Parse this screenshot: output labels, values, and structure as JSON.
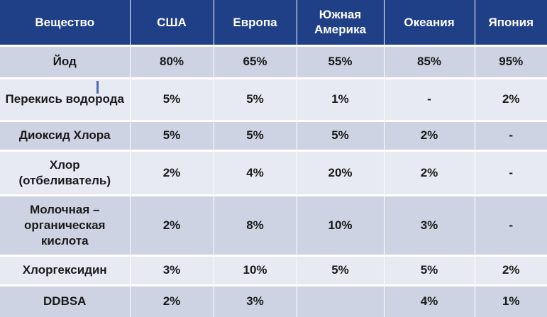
{
  "table": {
    "headers": [
      "Вещество",
      "США",
      "Европа",
      "Южная Америка",
      "Океания",
      "Япония"
    ],
    "rows": [
      [
        "Йод",
        "80%",
        "65%",
        "55%",
        "85%",
        "95%"
      ],
      [
        "Перекись водорода",
        "5%",
        "5%",
        "1%",
        "-",
        "2%"
      ],
      [
        "Диоксид Хлора",
        "5%",
        "5%",
        "5%",
        "2%",
        "-"
      ],
      [
        "Хлор (отбеливатель)",
        "2%",
        "4%",
        "20%",
        "2%",
        "-"
      ],
      [
        "Молочная – органическая кислота",
        "2%",
        "8%",
        "10%",
        "3%",
        "-"
      ],
      [
        "Хлоргексидин",
        "3%",
        "10%",
        "5%",
        "5%",
        "2%"
      ],
      [
        "DDBSA",
        "2%",
        "3%",
        "",
        "4%",
        "1%"
      ]
    ]
  },
  "colors": {
    "header_bg": "#1f3f86",
    "row_dark": "#cdd3e3",
    "row_light": "#e7eaf2"
  }
}
